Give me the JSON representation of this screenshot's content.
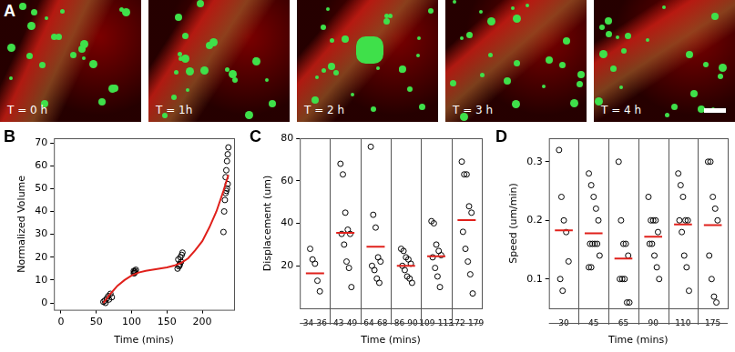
{
  "image_panel": {
    "label": "A",
    "frames": [
      "T = 0 h",
      "T = 1h",
      "T = 2 h",
      "T = 3 h",
      "T = 4 h"
    ]
  },
  "chart_data": [
    {
      "type": "scatter",
      "title": "B",
      "x_label": "Time (mins)",
      "y_label": "Normalized Volume",
      "xlim": [
        -10,
        245
      ],
      "xticks": [
        0,
        50,
        100,
        150,
        200
      ],
      "ylim": [
        -3,
        72
      ],
      "yticks": [
        0,
        10,
        20,
        30,
        40,
        50,
        60,
        70
      ],
      "grid": false,
      "series": [
        {
          "type": "scatter",
          "color": "#000000",
          "marker": "circle",
          "x": [
            60,
            62,
            63,
            65,
            67,
            68,
            70,
            72,
            103,
            104,
            105,
            103,
            104,
            106,
            165,
            167,
            168,
            170,
            166,
            169,
            171,
            172,
            168,
            230,
            231,
            232,
            233,
            234,
            235,
            236,
            233,
            234,
            235,
            236,
            237
          ],
          "values": [
            0.5,
            1,
            0,
            2,
            3,
            1.5,
            4,
            2.5,
            13,
            13.5,
            14,
            14,
            13,
            14.5,
            15,
            16,
            17,
            18,
            19,
            20,
            21,
            22,
            16.5,
            31,
            40,
            45,
            48,
            49,
            50,
            52,
            55,
            58,
            62,
            65,
            68
          ]
        },
        {
          "type": "line",
          "color": "#e0201b",
          "line_style": "solid",
          "x": [
            60,
            70,
            80,
            90,
            100,
            110,
            120,
            130,
            140,
            150,
            160,
            170,
            180,
            190,
            200,
            210,
            220,
            230,
            237
          ],
          "values": [
            0,
            4,
            7.5,
            10,
            12,
            13.3,
            14,
            14.5,
            15,
            15.5,
            16.3,
            17.5,
            19.5,
            23,
            27,
            33,
            40,
            49,
            56
          ]
        }
      ]
    },
    {
      "type": "scatter",
      "title": "C",
      "x_label": "Time (mins)",
      "y_label": "Displacement (um)",
      "categories": [
        "34-36",
        "43-49",
        "64-68",
        "86-90",
        "109-113",
        "172-179"
      ],
      "ylim": [
        0,
        80
      ],
      "yticks": [
        20,
        40,
        60,
        80
      ],
      "grid": false,
      "series": [
        {
          "type": "scatter",
          "color": "#000000",
          "marker": "circle",
          "values": [
            [
              28,
              23,
              21,
              13,
              8
            ],
            [
              68,
              63,
              45,
              37,
              35,
              35,
              30,
              22,
              19,
              10
            ],
            [
              76,
              44,
              38,
              24,
              22,
              20,
              18,
              14,
              12
            ],
            [
              28,
              27,
              24,
              23,
              21,
              20,
              18,
              15,
              14,
              12
            ],
            [
              41,
              40,
              30,
              27,
              25,
              24,
              19,
              15,
              10
            ],
            [
              69,
              63,
              63,
              48,
              45,
              36,
              28,
              22,
              16,
              7
            ]
          ]
        },
        {
          "type": "line",
          "color": "#e0201b",
          "values": [
            16.5,
            35.5,
            29,
            20,
            24.5,
            41.5
          ]
        }
      ]
    },
    {
      "type": "scatter",
      "title": "D",
      "x_label": "Time (mins)",
      "y_label": "Speed (um/min)",
      "categories": [
        "30",
        "45",
        "65",
        "90",
        "110",
        "175"
      ],
      "ylim": [
        0.05,
        0.34
      ],
      "yticks": [
        0.1,
        0.2,
        0.3
      ],
      "grid": false,
      "series": [
        {
          "type": "scatter",
          "color": "#000000",
          "marker": "circle",
          "values": [
            [
              0.32,
              0.24,
              0.2,
              0.18,
              0.13,
              0.1,
              0.08
            ],
            [
              0.28,
              0.26,
              0.24,
              0.22,
              0.2,
              0.16,
              0.16,
              0.16,
              0.16,
              0.14,
              0.12,
              0.12
            ],
            [
              0.3,
              0.2,
              0.16,
              0.16,
              0.14,
              0.1,
              0.1,
              0.1,
              0.06,
              0.06
            ],
            [
              0.24,
              0.2,
              0.2,
              0.2,
              0.18,
              0.16,
              0.16,
              0.14,
              0.12,
              0.1
            ],
            [
              0.28,
              0.26,
              0.24,
              0.2,
              0.2,
              0.2,
              0.18,
              0.14,
              0.12,
              0.08
            ],
            [
              0.3,
              0.3,
              0.24,
              0.22,
              0.2,
              0.14,
              0.1,
              0.07,
              0.06
            ]
          ]
        },
        {
          "type": "line",
          "color": "#e0201b",
          "values": [
            0.183,
            0.178,
            0.135,
            0.172,
            0.193,
            0.192
          ]
        }
      ]
    }
  ]
}
